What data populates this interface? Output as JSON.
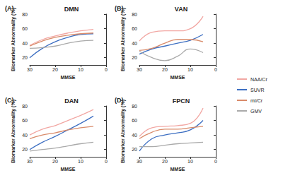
{
  "chart_data": [
    {
      "type": "line",
      "panel": "(A)",
      "title": "DMN",
      "x_label": "MMSE",
      "y_label": "Biomarker Abnormality (%)",
      "x": [
        30,
        25,
        20,
        15,
        10,
        5
      ],
      "xlim": [
        30,
        0
      ],
      "xticks": [
        30,
        20,
        10,
        0
      ],
      "ylim": [
        10,
        80
      ],
      "yticks": [
        20,
        40,
        60,
        80
      ],
      "grid": false,
      "legend": "right",
      "series": [
        {
          "name": "NAA/Cr",
          "color": "#f2a7a3",
          "values": [
            37,
            45,
            50,
            54,
            57,
            59
          ]
        },
        {
          "name": "SUVR",
          "color": "#3d6fc2",
          "values": [
            20,
            33,
            42,
            48,
            52,
            53
          ]
        },
        {
          "name": "mI/Cr",
          "color": "#d98b6a",
          "values": [
            36,
            43,
            48,
            51,
            53,
            54
          ]
        },
        {
          "name": "GMV",
          "color": "#aaaaaa",
          "values": [
            33,
            34,
            36,
            40,
            43,
            44
          ]
        }
      ]
    },
    {
      "type": "line",
      "panel": "(B)",
      "title": "VAN",
      "x_label": "MMSE",
      "y_label": "Biomarker Abnormality (%)",
      "x": [
        30,
        25,
        20,
        15,
        10,
        5
      ],
      "xlim": [
        30,
        0
      ],
      "xticks": [
        30,
        20,
        10,
        0
      ],
      "ylim": [
        10,
        80
      ],
      "yticks": [
        20,
        40,
        60,
        80
      ],
      "grid": false,
      "legend": "right",
      "series": [
        {
          "name": "NAA/Cr",
          "color": "#f2a7a3",
          "values": [
            43,
            55,
            57,
            57,
            60,
            77
          ]
        },
        {
          "name": "SUVR",
          "color": "#3d6fc2",
          "values": [
            25,
            32,
            36,
            40,
            44,
            52
          ]
        },
        {
          "name": "mI/Cr",
          "color": "#d98b6a",
          "values": [
            30,
            33,
            40,
            45,
            45,
            42
          ]
        },
        {
          "name": "GMV",
          "color": "#aaaaaa",
          "values": [
            29,
            20,
            16,
            22,
            32,
            27
          ]
        }
      ]
    },
    {
      "type": "line",
      "panel": "(C)",
      "title": "DAN",
      "x_label": "MMSE",
      "y_label": "Biomarker Abnormality (%)",
      "x": [
        30,
        25,
        20,
        15,
        10,
        5
      ],
      "xlim": [
        30,
        0
      ],
      "xticks": [
        30,
        20,
        10,
        0
      ],
      "ylim": [
        10,
        80
      ],
      "yticks": [
        20,
        40,
        60,
        80
      ],
      "grid": false,
      "legend": "right",
      "series": [
        {
          "name": "NAA/Cr",
          "color": "#f2a7a3",
          "values": [
            40,
            48,
            53,
            60,
            67,
            75
          ]
        },
        {
          "name": "SUVR",
          "color": "#3d6fc2",
          "values": [
            20,
            30,
            38,
            47,
            56,
            66
          ]
        },
        {
          "name": "mI/Cr",
          "color": "#d98b6a",
          "values": [
            35,
            40,
            43,
            47,
            50,
            52
          ]
        },
        {
          "name": "GMV",
          "color": "#aaaaaa",
          "values": [
            18,
            20,
            22,
            25,
            28,
            30
          ]
        }
      ]
    },
    {
      "type": "line",
      "panel": "(D)",
      "title": "FPCN",
      "x_label": "MMSE",
      "y_label": "Biomarker Abnormality (%)",
      "x": [
        30,
        25,
        20,
        15,
        10,
        5
      ],
      "xlim": [
        30,
        0
      ],
      "xticks": [
        30,
        20,
        10,
        0
      ],
      "ylim": [
        10,
        80
      ],
      "yticks": [
        20,
        40,
        60,
        80
      ],
      "grid": false,
      "legend": "right",
      "series": [
        {
          "name": "NAA/Cr",
          "color": "#f2a7a3",
          "values": [
            38,
            50,
            52,
            53,
            56,
            77
          ]
        },
        {
          "name": "SUVR",
          "color": "#3d6fc2",
          "values": [
            18,
            35,
            40,
            43,
            47,
            60
          ]
        },
        {
          "name": "mI/Cr",
          "color": "#d98b6a",
          "values": [
            35,
            44,
            48,
            48,
            50,
            52
          ]
        },
        {
          "name": "GMV",
          "color": "#aaaaaa",
          "values": [
            24,
            24,
            26,
            28,
            29,
            30
          ]
        }
      ]
    }
  ]
}
